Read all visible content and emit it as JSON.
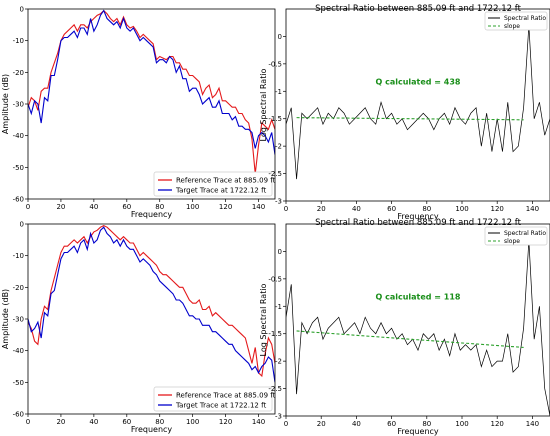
{
  "chart_data": [
    {
      "type": "line",
      "title": "",
      "xlabel": "Frequency",
      "ylabel": "Amplitude (dB)",
      "xlim": [
        0,
        150
      ],
      "ylim": [
        -60,
        0
      ],
      "xticks": [
        0,
        20,
        40,
        60,
        80,
        100,
        120,
        140
      ],
      "yticks": [
        0,
        -10,
        -20,
        -30,
        -40,
        -50,
        -60
      ],
      "legend_position": "lower-right",
      "grid": false,
      "series": [
        {
          "name": "Reference Trace at 885.09 ft",
          "color": "#e41a1c",
          "x": [
            0,
            2,
            4,
            6,
            8,
            10,
            12,
            14,
            16,
            18,
            20,
            22,
            24,
            26,
            28,
            30,
            32,
            34,
            36,
            38,
            40,
            42,
            44,
            46,
            48,
            50,
            52,
            54,
            56,
            58,
            60,
            62,
            64,
            66,
            68,
            70,
            72,
            74,
            76,
            78,
            80,
            82,
            84,
            86,
            88,
            90,
            92,
            94,
            96,
            98,
            100,
            102,
            104,
            106,
            108,
            110,
            112,
            114,
            116,
            118,
            120,
            122,
            124,
            126,
            128,
            130,
            132,
            134,
            136,
            138,
            140,
            142,
            144,
            146,
            148,
            150
          ],
          "y": [
            -31,
            -28,
            -29,
            -32,
            -26,
            -25,
            -25,
            -20,
            -17,
            -14,
            -10,
            -8,
            -7,
            -6,
            -5,
            -7,
            -5,
            -5,
            -6,
            -4,
            -3,
            -2,
            -1.5,
            -0.5,
            -1.5,
            -3,
            -4,
            -3,
            -5,
            -2.5,
            -5,
            -6,
            -5.5,
            -7,
            -9,
            -8,
            -9,
            -10,
            -11,
            -16,
            -15,
            -15.5,
            -16,
            -15,
            -15,
            -17,
            -17,
            -19,
            -19,
            -21,
            -21,
            -22,
            -23,
            -27,
            -25,
            -24,
            -28,
            -27,
            -25,
            -29,
            -29,
            -30,
            -31,
            -31,
            -33,
            -33,
            -35,
            -36,
            -41,
            -52,
            -43,
            -36,
            -37,
            -38,
            -35,
            -38
          ]
        },
        {
          "name": "Target Trace at 1722.12 ft",
          "color": "#0000cc",
          "x": [
            0,
            2,
            4,
            6,
            8,
            10,
            12,
            14,
            16,
            18,
            20,
            22,
            24,
            26,
            28,
            30,
            32,
            34,
            36,
            38,
            40,
            42,
            44,
            46,
            48,
            50,
            52,
            54,
            56,
            58,
            60,
            62,
            64,
            66,
            68,
            70,
            72,
            74,
            76,
            78,
            80,
            82,
            84,
            86,
            88,
            90,
            92,
            94,
            96,
            98,
            100,
            102,
            104,
            106,
            108,
            110,
            112,
            114,
            116,
            118,
            120,
            122,
            124,
            126,
            128,
            130,
            132,
            134,
            136,
            138,
            140,
            142,
            144,
            146,
            148,
            150
          ],
          "y": [
            -30,
            -33,
            -29,
            -30,
            -36,
            -28,
            -29,
            -21,
            -21,
            -16,
            -10,
            -9,
            -9,
            -8,
            -7,
            -9,
            -6,
            -6,
            -8,
            -3,
            -7,
            -5,
            -2,
            -0.5,
            -3,
            -4,
            -5,
            -4,
            -6,
            -3,
            -6,
            -7,
            -6,
            -8,
            -10,
            -9,
            -10,
            -11,
            -12,
            -17,
            -16,
            -16,
            -17,
            -15,
            -16,
            -20,
            -18,
            -22,
            -22,
            -26,
            -25,
            -25,
            -27,
            -30,
            -29,
            -28,
            -31,
            -31,
            -29,
            -33,
            -33,
            -33,
            -35,
            -34,
            -37,
            -37,
            -38,
            -38,
            -39,
            -44,
            -40,
            -39,
            -40,
            -42,
            -39,
            -46
          ]
        }
      ]
    },
    {
      "type": "line",
      "title": "Spectral Ratio between 885.09 ft and 1722.12 ft",
      "xlabel": "Frequency",
      "ylabel": "Log Spectral Ratio",
      "xlim": [
        0,
        150
      ],
      "ylim": [
        -3.0,
        0.5
      ],
      "xticks": [
        0,
        20,
        40,
        60,
        80,
        100,
        120,
        140
      ],
      "yticks": [
        0.0,
        -0.5,
        -1.0,
        -1.5,
        -2.0,
        -2.5,
        -3.0
      ],
      "legend_position": "top-right",
      "grid": false,
      "annotation": "Q calculated = 438",
      "series": [
        {
          "name": "Spectral Ratio",
          "color": "#000000",
          "x": [
            0,
            3,
            6,
            9,
            12,
            15,
            18,
            21,
            24,
            27,
            30,
            33,
            36,
            39,
            42,
            45,
            48,
            51,
            54,
            57,
            60,
            63,
            66,
            69,
            72,
            75,
            78,
            81,
            84,
            87,
            90,
            93,
            96,
            99,
            102,
            105,
            108,
            111,
            114,
            117,
            120,
            123,
            126,
            129,
            132,
            135,
            138,
            141,
            144,
            147,
            150
          ],
          "y": [
            -1.6,
            -1.3,
            -2.6,
            -1.4,
            -1.5,
            -1.4,
            -1.3,
            -1.6,
            -1.4,
            -1.5,
            -1.3,
            -1.4,
            -1.6,
            -1.5,
            -1.4,
            -1.3,
            -1.5,
            -1.6,
            -1.2,
            -1.5,
            -1.4,
            -1.6,
            -1.5,
            -1.7,
            -1.6,
            -1.5,
            -1.4,
            -1.5,
            -1.7,
            -1.5,
            -1.4,
            -1.6,
            -1.3,
            -1.5,
            -1.6,
            -1.4,
            -1.3,
            -2.0,
            -1.4,
            -2.1,
            -1.5,
            -2.1,
            -1.2,
            -2.1,
            -2.0,
            -1.3,
            0.2,
            -1.5,
            -1.2,
            -1.8,
            -1.5
          ]
        },
        {
          "name": "slope",
          "color": "#2ca02c",
          "x": [
            6,
            135
          ],
          "y": [
            -1.48,
            -1.52
          ]
        }
      ]
    },
    {
      "type": "line",
      "title": "",
      "xlabel": "Frequency",
      "ylabel": "Amplitude (dB)",
      "xlim": [
        0,
        150
      ],
      "ylim": [
        -60,
        0
      ],
      "xticks": [
        0,
        20,
        40,
        60,
        80,
        100,
        120,
        140
      ],
      "yticks": [
        0,
        -10,
        -20,
        -30,
        -40,
        -50,
        -60
      ],
      "legend_position": "lower-right",
      "grid": false,
      "series": [
        {
          "name": "Reference Trace at 885.09 ft",
          "color": "#e41a1c",
          "x": [
            0,
            2,
            4,
            6,
            8,
            10,
            12,
            14,
            16,
            18,
            20,
            22,
            24,
            26,
            28,
            30,
            32,
            34,
            36,
            38,
            40,
            42,
            44,
            46,
            48,
            50,
            52,
            54,
            56,
            58,
            60,
            62,
            64,
            66,
            68,
            70,
            72,
            74,
            76,
            78,
            80,
            82,
            84,
            86,
            88,
            90,
            92,
            94,
            96,
            98,
            100,
            102,
            104,
            106,
            108,
            110,
            112,
            114,
            116,
            118,
            120,
            122,
            124,
            126,
            128,
            130,
            132,
            134,
            136,
            138,
            140,
            142,
            144,
            146,
            148,
            150
          ],
          "y": [
            -31,
            -33,
            -37,
            -38,
            -30,
            -26,
            -27,
            -21,
            -17,
            -13,
            -9,
            -7,
            -7,
            -6,
            -5,
            -6,
            -5,
            -4,
            -6,
            -4,
            -2.5,
            -2,
            -1,
            -0.5,
            -1,
            -2,
            -3,
            -4,
            -5,
            -4,
            -5,
            -6,
            -6,
            -8,
            -10,
            -9,
            -10,
            -11,
            -12,
            -13,
            -15,
            -16,
            -16,
            -17,
            -18,
            -19,
            -20,
            -20,
            -22,
            -24,
            -25,
            -25,
            -24,
            -27,
            -27,
            -26,
            -29,
            -28,
            -29,
            -30,
            -31,
            -32,
            -32,
            -33,
            -34,
            -35,
            -36,
            -40,
            -44,
            -39,
            -47,
            -48,
            -41,
            -36,
            -38,
            -44
          ]
        },
        {
          "name": "Target Trace at 1722.12 ft",
          "color": "#0000cc",
          "x": [
            0,
            2,
            4,
            6,
            8,
            10,
            12,
            14,
            16,
            18,
            20,
            22,
            24,
            26,
            28,
            30,
            32,
            34,
            36,
            38,
            40,
            42,
            44,
            46,
            48,
            50,
            52,
            54,
            56,
            58,
            60,
            62,
            64,
            66,
            68,
            70,
            72,
            74,
            76,
            78,
            80,
            82,
            84,
            86,
            88,
            90,
            92,
            94,
            96,
            98,
            100,
            102,
            104,
            106,
            108,
            110,
            112,
            114,
            116,
            118,
            120,
            122,
            124,
            126,
            128,
            130,
            132,
            134,
            136,
            138,
            140,
            142,
            144,
            146,
            148,
            150
          ],
          "y": [
            -30,
            -34,
            -33,
            -31,
            -36,
            -28,
            -29,
            -22,
            -21,
            -16,
            -11,
            -9,
            -9,
            -8,
            -7,
            -9,
            -6,
            -5,
            -8,
            -3,
            -6,
            -5,
            -2,
            -1,
            -3,
            -4,
            -6,
            -5,
            -7,
            -5,
            -7,
            -8,
            -8,
            -10,
            -12,
            -11,
            -12,
            -13,
            -15,
            -16,
            -18,
            -19,
            -20,
            -21,
            -22,
            -24,
            -24,
            -25,
            -27,
            -29,
            -29,
            -30,
            -30,
            -32,
            -32,
            -32,
            -34,
            -34,
            -35,
            -36,
            -37,
            -38,
            -38,
            -40,
            -41,
            -42,
            -43,
            -44,
            -46,
            -45,
            -47,
            -45,
            -44,
            -42,
            -43,
            -50
          ]
        }
      ]
    },
    {
      "type": "line",
      "title": "Spectral Ratio between 885.09 ft and 1722.12 ft",
      "xlabel": "Frequency",
      "ylabel": "Log Spectral Ratio",
      "xlim": [
        0,
        150
      ],
      "ylim": [
        -3.0,
        0.5
      ],
      "xticks": [
        0,
        20,
        40,
        60,
        80,
        100,
        120,
        140
      ],
      "yticks": [
        0.0,
        -0.5,
        -1.0,
        -1.5,
        -2.0,
        -2.5,
        -3.0
      ],
      "legend_position": "top-right",
      "grid": false,
      "annotation": "Q calculated = 118",
      "series": [
        {
          "name": "Spectral Ratio",
          "color": "#000000",
          "x": [
            0,
            3,
            6,
            9,
            12,
            15,
            18,
            21,
            24,
            27,
            30,
            33,
            36,
            39,
            42,
            45,
            48,
            51,
            54,
            57,
            60,
            63,
            66,
            69,
            72,
            75,
            78,
            81,
            84,
            87,
            90,
            93,
            96,
            99,
            102,
            105,
            108,
            111,
            114,
            117,
            120,
            123,
            126,
            129,
            132,
            135,
            138,
            141,
            144,
            147,
            150
          ],
          "y": [
            -1.2,
            -0.6,
            -2.6,
            -1.3,
            -1.5,
            -1.3,
            -1.2,
            -1.6,
            -1.4,
            -1.3,
            -1.2,
            -1.5,
            -1.4,
            -1.3,
            -1.5,
            -1.2,
            -1.4,
            -1.5,
            -1.3,
            -1.5,
            -1.4,
            -1.6,
            -1.5,
            -1.7,
            -1.6,
            -1.8,
            -1.5,
            -1.6,
            -1.5,
            -1.8,
            -1.6,
            -1.9,
            -1.5,
            -1.8,
            -1.7,
            -1.8,
            -1.7,
            -2.1,
            -1.8,
            -2.1,
            -2.0,
            -2.0,
            -1.5,
            -2.2,
            -2.1,
            -1.4,
            0.2,
            -1.6,
            -1.0,
            -2.5,
            -3.0
          ]
        },
        {
          "name": "slope",
          "color": "#2ca02c",
          "x": [
            6,
            135
          ],
          "y": [
            -1.45,
            -1.75
          ]
        }
      ]
    }
  ]
}
